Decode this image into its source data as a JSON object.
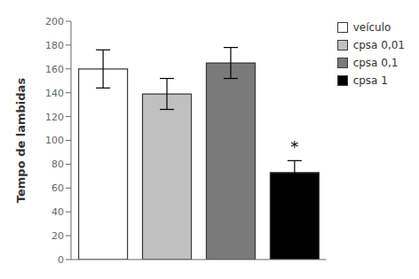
{
  "chart_data": {
    "type": "bar",
    "categories": [
      "veículo",
      "cpsa 0,01",
      "cpsa 0,1",
      "cpsa 1"
    ],
    "values": [
      160,
      139,
      165,
      73
    ],
    "errors": [
      16,
      13,
      13,
      10
    ],
    "colors": [
      "#ffffff",
      "#c0c0c0",
      "#7a7a7a",
      "#000000"
    ],
    "ylabel": "Tempo de lambidas",
    "ylim": [
      0,
      200
    ],
    "yticks": [
      0,
      20,
      40,
      60,
      80,
      100,
      120,
      140,
      160,
      180,
      200
    ],
    "tick_labels": "y",
    "grid": false,
    "legend": "right",
    "annotations": [
      {
        "text": "*",
        "category": "cpsa 1",
        "y": 86
      }
    ]
  }
}
